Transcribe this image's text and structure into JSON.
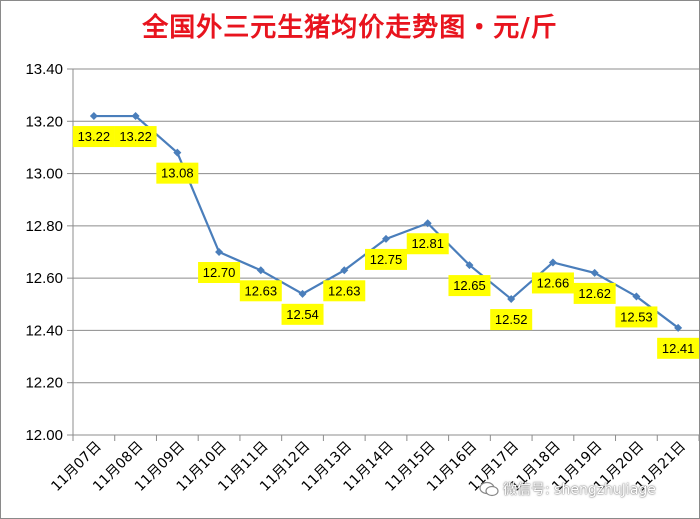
{
  "chart_data": {
    "type": "line",
    "title": "全国外三元生猪均价走势图・元/斤",
    "categories": [
      "11月07日",
      "11月08日",
      "11月09日",
      "11月10日",
      "11月11日",
      "11月12日",
      "11月13日",
      "11月14日",
      "11月15日",
      "11月16日",
      "11月17日",
      "11月18日",
      "11月19日",
      "11月20日",
      "11月21日"
    ],
    "values": [
      13.22,
      13.22,
      13.08,
      12.7,
      12.63,
      12.54,
      12.63,
      12.75,
      12.81,
      12.65,
      12.52,
      12.66,
      12.62,
      12.53,
      12.41
    ],
    "data_labels": [
      "13.22",
      "13.22",
      "13.08",
      "12.70",
      "12.63",
      "12.54",
      "12.63",
      "12.75",
      "12.81",
      "12.65",
      "12.52",
      "12.66",
      "12.62",
      "12.53",
      "12.41"
    ],
    "ylim": [
      12.0,
      13.4
    ],
    "yticks": [
      "12.00",
      "12.20",
      "12.40",
      "12.60",
      "12.80",
      "13.00",
      "13.20",
      "13.40"
    ],
    "xlabel": "",
    "ylabel": "",
    "grid": true,
    "line_color": "#4a7ebb",
    "label_bg_color": "#ffff00"
  },
  "watermark": {
    "text": "微信号: shengzhuJiage",
    "icon": "wechat-icon"
  },
  "colors": {
    "title": "#e8141e"
  }
}
